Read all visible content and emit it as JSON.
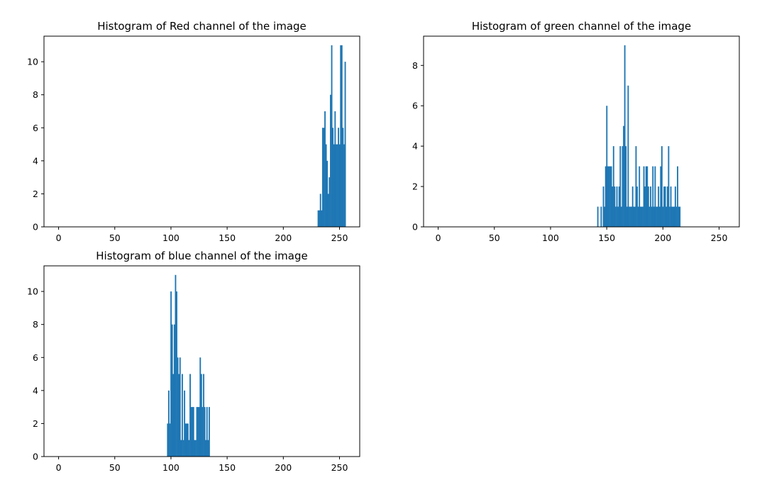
{
  "chart_data": [
    {
      "type": "bar",
      "title": "Histogram of Red channel of the image",
      "xlabel": "",
      "ylabel": "",
      "xlim": [
        -13,
        268
      ],
      "ylim": [
        0,
        11.55
      ],
      "xticks": [
        0,
        50,
        100,
        150,
        200,
        250
      ],
      "yticks": [
        0,
        2,
        4,
        6,
        8,
        10
      ],
      "grid": false,
      "color": "#1f77b4",
      "bar_width": 1,
      "x": [
        231,
        232,
        233,
        234,
        235,
        236,
        237,
        238,
        239,
        240,
        241,
        242,
        243,
        244,
        245,
        246,
        247,
        248,
        249,
        250,
        251,
        252,
        253,
        254,
        255
      ],
      "values": [
        1,
        1,
        2,
        1,
        6,
        6,
        7,
        5,
        4,
        2,
        3,
        8,
        11,
        6,
        5,
        7,
        5,
        5,
        6,
        5,
        11,
        11,
        6,
        5,
        10
      ]
    },
    {
      "type": "bar",
      "title": "Histogram of green channel of the image",
      "xlabel": "",
      "ylabel": "",
      "xlim": [
        -13,
        268
      ],
      "ylim": [
        0,
        9.45
      ],
      "xticks": [
        0,
        50,
        100,
        150,
        200,
        250
      ],
      "yticks": [
        0,
        2,
        4,
        6,
        8
      ],
      "grid": false,
      "color": "#1f77b4",
      "bar_width": 1,
      "x": [
        142,
        145,
        147,
        148,
        149,
        150,
        151,
        152,
        153,
        154,
        155,
        156,
        157,
        158,
        159,
        160,
        161,
        162,
        163,
        164,
        165,
        166,
        167,
        168,
        169,
        170,
        171,
        172,
        173,
        174,
        175,
        176,
        177,
        178,
        179,
        180,
        181,
        182,
        183,
        184,
        185,
        186,
        187,
        188,
        189,
        190,
        191,
        192,
        193,
        194,
        195,
        196,
        197,
        198,
        199,
        200,
        201,
        202,
        203,
        204,
        205,
        206,
        207,
        208,
        209,
        210,
        211,
        212,
        213,
        214,
        215
      ],
      "values": [
        1,
        1,
        2,
        1,
        3,
        6,
        3,
        3,
        3,
        3,
        2,
        4,
        2,
        1,
        2,
        1,
        2,
        4,
        1,
        4,
        5,
        9,
        4,
        1,
        7,
        1,
        1,
        1,
        2,
        1,
        1,
        4,
        2,
        1,
        3,
        1,
        1,
        1,
        3,
        2,
        3,
        3,
        2,
        1,
        2,
        1,
        3,
        1,
        3,
        1,
        1,
        2,
        1,
        3,
        4,
        1,
        2,
        2,
        1,
        2,
        4,
        1,
        2,
        1,
        1,
        1,
        2,
        1,
        3,
        1,
        1
      ]
    },
    {
      "type": "bar",
      "title": "Histogram of blue channel of the image",
      "xlabel": "",
      "ylabel": "",
      "xlim": [
        -13,
        268
      ],
      "ylim": [
        0,
        11.55
      ],
      "xticks": [
        0,
        50,
        100,
        150,
        200,
        250
      ],
      "yticks": [
        0,
        2,
        4,
        6,
        8,
        10
      ],
      "grid": false,
      "color": "#1f77b4",
      "bar_width": 1,
      "x": [
        97,
        98,
        99,
        100,
        101,
        102,
        103,
        104,
        105,
        106,
        107,
        108,
        109,
        110,
        111,
        112,
        113,
        114,
        115,
        116,
        117,
        118,
        119,
        120,
        121,
        122,
        123,
        124,
        125,
        126,
        127,
        128,
        129,
        130,
        131,
        132,
        133,
        134
      ],
      "values": [
        2,
        4,
        2,
        10,
        8,
        5,
        8,
        11,
        10,
        6,
        5,
        6,
        1,
        5,
        1,
        4,
        2,
        2,
        2,
        1,
        5,
        3,
        3,
        3,
        1,
        1,
        3,
        3,
        3,
        6,
        5,
        3,
        5,
        3,
        1,
        3,
        1,
        3
      ]
    }
  ]
}
